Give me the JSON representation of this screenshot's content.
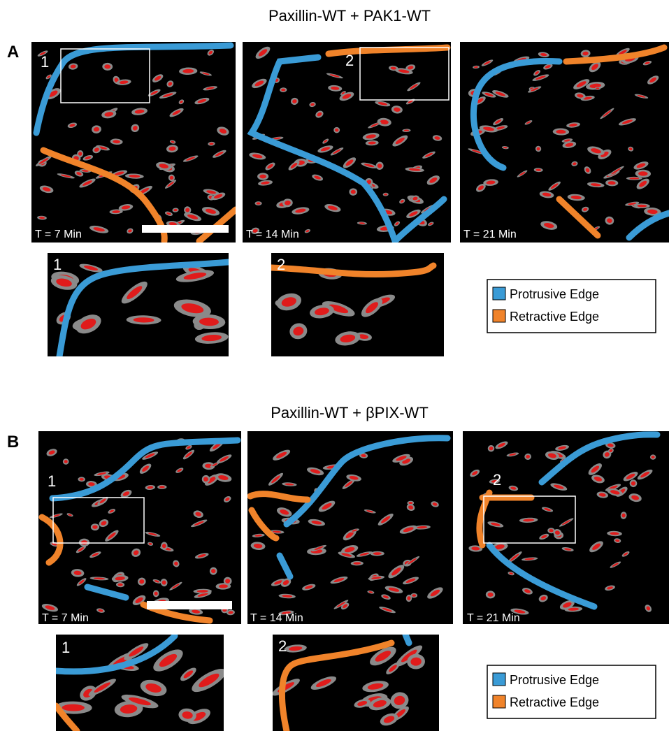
{
  "panels": [
    {
      "letter": "A",
      "title": "Paxillin-WT + PAK1-WT",
      "frames": [
        {
          "time": "T = 7 Min",
          "box_label": "1"
        },
        {
          "time": "T = 14 Min",
          "box_label": "2"
        },
        {
          "time": "T = 21 Min"
        }
      ],
      "insets": [
        {
          "label": "1"
        },
        {
          "label": "2"
        }
      ],
      "legend": [
        "Protrusive Edge",
        "Retractive Edge"
      ]
    },
    {
      "letter": "B",
      "title": "Paxillin-WT + βPIX-WT",
      "frames": [
        {
          "time": "T = 7 Min",
          "box_label": "1"
        },
        {
          "time": "T = 14 Min"
        },
        {
          "time": "T = 21 Min",
          "box_label": "2"
        }
      ],
      "insets": [
        {
          "label": "1"
        },
        {
          "label": "2"
        }
      ],
      "legend": [
        "Protrusive Edge",
        "Retractive Edge"
      ]
    }
  ]
}
